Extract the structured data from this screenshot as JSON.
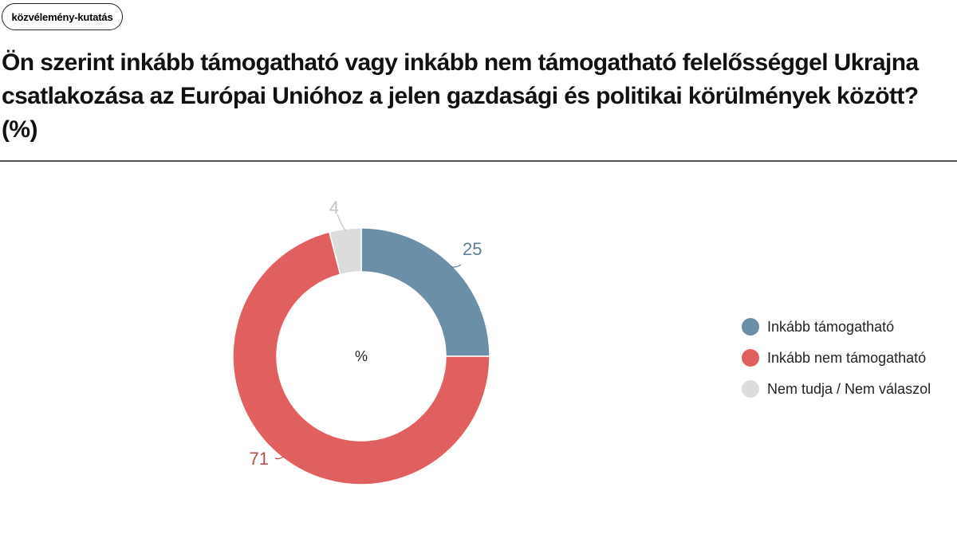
{
  "tag": {
    "label": "közvélemény-kutatás"
  },
  "question": "Ön szerint inkább támogatható vagy inkább nem támogatható felelősséggel Ukrajna csatlakozása az Európai Unióhoz a jelen gazdasági és politikai körülmények között? (%)",
  "chart_data": {
    "type": "pie",
    "donut": true,
    "center_label": "%",
    "legend_position": "right",
    "categories": [
      "Inkább támogatható",
      "Inkább nem támogatható",
      "Nem tudja / Nem válaszol"
    ],
    "values": [
      25,
      71,
      4
    ],
    "colors": [
      "#6a8fa6",
      "#e0605f",
      "#dcdcdc"
    ],
    "label_colors": [
      "#5f7f95",
      "#b84d4b",
      "#c4c4c4"
    ]
  }
}
